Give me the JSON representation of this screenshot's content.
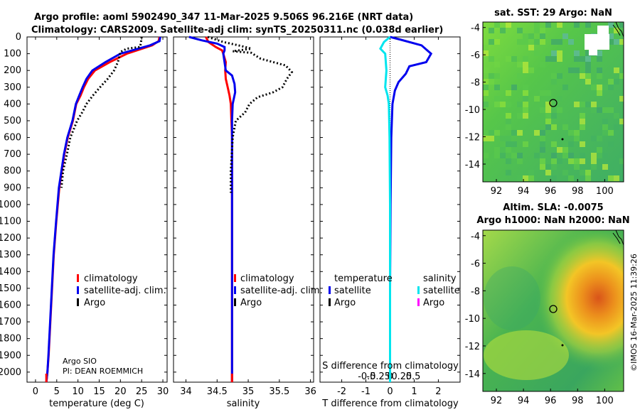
{
  "title": {
    "line1": "Argo profile: aoml 5902490_347 11-Mar-2025 9.506S 96.216E (NRT data)",
    "line2": "Climatology: CARS2009. Satellite-adj clim: synTS_20250311.nc (0.038d earlier)"
  },
  "colors": {
    "climatology": "#ff0000",
    "satellite_adj": "#0000ee",
    "argo": "#000000",
    "salinity_satellite": "#00e5ee",
    "salinity_argo": "#ff00ff",
    "map_circle": "#000000"
  },
  "depth_axis": {
    "ticks": [
      0,
      100,
      200,
      300,
      400,
      500,
      600,
      700,
      800,
      900,
      1000,
      1100,
      1200,
      1300,
      1400,
      1500,
      1600,
      1700,
      1800,
      1900,
      2000
    ],
    "range": [
      0,
      2060
    ],
    "inverted": true
  },
  "chart_data": [
    {
      "type": "line",
      "name": "temperature-profile",
      "xlabel": "temperature (deg C)",
      "ylabel": "",
      "xlim": [
        -2,
        31
      ],
      "xticks": [
        0,
        5,
        10,
        15,
        20,
        25,
        30
      ],
      "legend": [
        "climatology",
        "satellite-adj. clim.",
        "Argo"
      ],
      "series": [
        {
          "name": "climatology",
          "color_key": "climatology",
          "style": "solid",
          "x": [
            29.2,
            29.0,
            27.5,
            24.5,
            21.5,
            17.5,
            14.0,
            12.4,
            11.4,
            10.6,
            9.6,
            8.8,
            7.6,
            6.8,
            5.6,
            4.9,
            4.3,
            3.9,
            3.5,
            3.1,
            2.8,
            2.55
          ],
          "y": [
            0,
            25,
            50,
            75,
            100,
            150,
            200,
            250,
            300,
            350,
            400,
            500,
            600,
            700,
            900,
            1100,
            1300,
            1500,
            1700,
            1900,
            2000,
            2060
          ]
        },
        {
          "name": "satellite-adj. clim.",
          "color_key": "satellite_adj",
          "style": "solid",
          "x": [
            29.4,
            29.2,
            27.0,
            23.5,
            20.0,
            16.5,
            13.4,
            12.0,
            11.1,
            10.3,
            9.5,
            8.7,
            7.5,
            6.7,
            5.5,
            4.85,
            4.25,
            3.85,
            3.45,
            3.05,
            2.8,
            2.55
          ],
          "y": [
            0,
            25,
            50,
            75,
            100,
            150,
            200,
            250,
            300,
            350,
            400,
            500,
            600,
            700,
            900,
            1100,
            1300,
            1500,
            1700,
            1900,
            2000,
            2060
          ]
        },
        {
          "name": "Argo",
          "color_key": "argo",
          "style": "dotted",
          "x": [
            25.0,
            24.9,
            24.8,
            24.6,
            21.5,
            20.0,
            19.4,
            18.5,
            17.0,
            15.2,
            13.5,
            12.0,
            11.0,
            9.8,
            9.0,
            8.2,
            7.4,
            6.5,
            6.1
          ],
          "y": [
            0,
            20,
            40,
            60,
            70,
            90,
            150,
            200,
            250,
            300,
            350,
            400,
            450,
            500,
            550,
            600,
            700,
            800,
            900
          ]
        }
      ]
    },
    {
      "type": "line",
      "name": "salinity-profile",
      "xlabel": "salinity",
      "ylabel": "",
      "xlim": [
        33.8,
        36.05
      ],
      "xticks": [
        34,
        34.5,
        35,
        35.5,
        36
      ],
      "legend": [
        "climatology",
        "satellite-adj. clim.",
        "Argo"
      ],
      "series": [
        {
          "name": "climatology",
          "color_key": "climatology",
          "style": "solid",
          "x": [
            34.32,
            34.36,
            34.48,
            34.58,
            34.6,
            34.64,
            34.63,
            34.64,
            34.67,
            34.7,
            34.72,
            34.73,
            34.74,
            34.74,
            34.74,
            34.74,
            34.74,
            34.74,
            34.74,
            34.74,
            34.74
          ],
          "y": [
            0,
            30,
            60,
            80,
            100,
            150,
            200,
            250,
            300,
            350,
            400,
            500,
            600,
            700,
            900,
            1100,
            1300,
            1500,
            1700,
            1900,
            2060
          ]
        },
        {
          "name": "satellite-adj. clim.",
          "color_key": "satellite_adj",
          "style": "solid",
          "x": [
            34.05,
            34.25,
            34.5,
            34.62,
            34.62,
            34.6,
            34.64,
            34.74,
            34.78,
            34.79,
            34.75,
            34.74,
            34.74,
            34.74,
            34.74,
            34.74,
            34.74,
            34.74,
            34.74,
            34.74,
            34.74
          ],
          "y": [
            0,
            20,
            40,
            60,
            80,
            100,
            200,
            230,
            280,
            330,
            400,
            500,
            600,
            700,
            900,
            1100,
            1300,
            1500,
            1700,
            1900,
            2060
          ]
        },
        {
          "name": "Argo",
          "color_key": "argo",
          "style": "dotted",
          "x": [
            34.35,
            34.6,
            34.9,
            35.05,
            34.75,
            35.05,
            35.2,
            35.6,
            35.7,
            35.62,
            35.55,
            35.4,
            35.15,
            35.02,
            34.95,
            34.8,
            34.75,
            34.72,
            34.72
          ],
          "y": [
            0,
            30,
            55,
            70,
            85,
            95,
            130,
            170,
            210,
            250,
            300,
            330,
            360,
            400,
            450,
            500,
            600,
            800,
            930
          ]
        }
      ]
    },
    {
      "type": "line",
      "name": "difference-profile",
      "xlabel": "T difference from climatology",
      "xlabel_top": "S difference from climatology",
      "ylabel": "",
      "xlim": [
        -2.9,
        2.9
      ],
      "xticks": [
        -2,
        -1,
        0,
        1,
        2
      ],
      "xticks_top": [
        "-0.5",
        "-0.25",
        "0",
        "0.25",
        "0.5"
      ],
      "legend": [
        "temperature",
        "satellite",
        "Argo",
        "salinity",
        "satellite",
        "Argo"
      ],
      "series": [
        {
          "name": "temperature satellite",
          "color_key": "satellite_adj",
          "style": "solid",
          "x": [
            0.0,
            0.4,
            1.3,
            1.7,
            1.5,
            0.8,
            0.65,
            0.35,
            0.2,
            0.1,
            0.05,
            0.02,
            0.0,
            0.0
          ],
          "y": [
            0,
            15,
            50,
            100,
            150,
            175,
            220,
            270,
            320,
            400,
            600,
            1000,
            1500,
            2060
          ]
        },
        {
          "name": "salinity satellite",
          "color_key": "salinity_satellite",
          "style": "solid",
          "x": [
            0.0,
            -0.25,
            -0.4,
            -0.2,
            -0.15,
            -0.2,
            -0.1,
            -0.05,
            -0.02,
            0.0,
            0.0
          ],
          "y": [
            0,
            30,
            70,
            100,
            200,
            300,
            350,
            400,
            600,
            1000,
            2060
          ]
        }
      ]
    }
  ],
  "maps": {
    "sst": {
      "title": "sat. SST: 29 Argo: NaN",
      "lon_ticks": [
        "92",
        "94",
        "96",
        "98",
        "100"
      ],
      "lat_ticks": [
        "-4",
        "-6",
        "-8",
        "-10",
        "-12",
        "-14"
      ]
    },
    "sla": {
      "title1": "Altim. SLA: -0.0075",
      "title2": "Argo h1000: NaN h2000: NaN",
      "lon_ticks": [
        "92",
        "94",
        "96",
        "98",
        "100"
      ],
      "lat_ticks": [
        "-4",
        "-6",
        "-8",
        "-10",
        "-12",
        "-14"
      ]
    }
  },
  "credit": {
    "line1": "Argo SIO",
    "line2": "PI: DEAN ROEMMICH",
    "stamp": "©IMOS 16-Mar-2025 11:39:26"
  }
}
